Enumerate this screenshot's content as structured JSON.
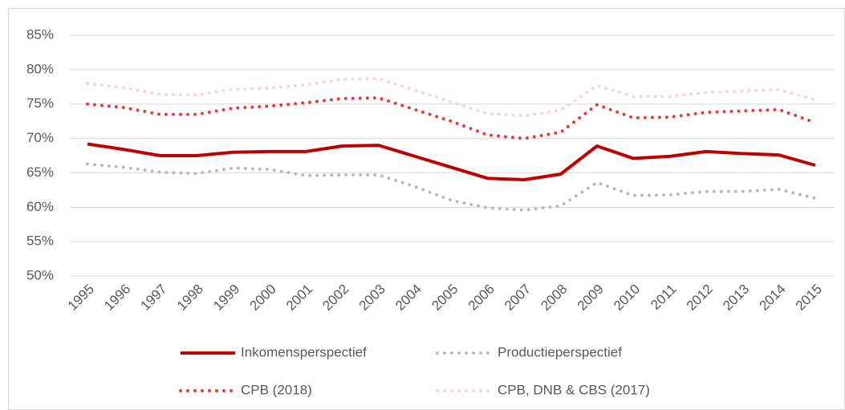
{
  "chart_data": {
    "type": "line",
    "x": [
      "1995",
      "1996",
      "1997",
      "1998",
      "1999",
      "2000",
      "2001",
      "2002",
      "2003",
      "2004",
      "2005",
      "2006",
      "2007",
      "2008",
      "2009",
      "2010",
      "2011",
      "2012",
      "2013",
      "2014",
      "2015"
    ],
    "ylim": [
      50,
      85
    ],
    "yticks": [
      {
        "value": 50,
        "label": "50%"
      },
      {
        "value": 55,
        "label": "55%"
      },
      {
        "value": 60,
        "label": "60%"
      },
      {
        "value": 65,
        "label": "65%"
      },
      {
        "value": 70,
        "label": "70%"
      },
      {
        "value": 75,
        "label": "75%"
      },
      {
        "value": 80,
        "label": "80%"
      },
      {
        "value": 85,
        "label": "85%"
      }
    ],
    "grid": true,
    "legend": "bottom",
    "series": [
      {
        "name": "Inkomensperspectief",
        "color": "#c00000",
        "style": "solid",
        "values": [
          69.2,
          68.4,
          67.5,
          67.5,
          68.0,
          68.1,
          68.1,
          68.9,
          69.0,
          67.4,
          65.8,
          64.2,
          64.0,
          64.8,
          68.9,
          67.1,
          67.4,
          68.1,
          67.8,
          67.6,
          66.1
        ]
      },
      {
        "name": "Productieperspectief",
        "color": "#bcbcae",
        "style": "dotted",
        "values": [
          66.3,
          65.8,
          65.1,
          64.9,
          65.7,
          65.5,
          64.6,
          64.7,
          64.7,
          63.0,
          61.0,
          59.9,
          59.6,
          60.2,
          63.6,
          61.7,
          61.8,
          62.3,
          62.3,
          62.6,
          61.3
        ]
      },
      {
        "name": "CPB (2018)",
        "color": "#e83a3a",
        "style": "dotted",
        "values": [
          75.0,
          74.5,
          73.5,
          73.5,
          74.4,
          74.7,
          75.2,
          75.8,
          75.9,
          74.2,
          72.5,
          70.5,
          70.0,
          70.9,
          74.9,
          73.0,
          73.1,
          73.8,
          74.0,
          74.2,
          72.3
        ]
      },
      {
        "name": "CPB, DNB & CBS (2017)",
        "color": "#ffd0d6",
        "style": "dotted",
        "values": [
          78.0,
          77.4,
          76.4,
          76.3,
          77.2,
          77.3,
          77.8,
          78.6,
          78.7,
          77.0,
          75.3,
          73.6,
          73.3,
          74.1,
          77.7,
          76.1,
          76.1,
          76.7,
          76.9,
          77.1,
          75.6
        ]
      }
    ]
  }
}
